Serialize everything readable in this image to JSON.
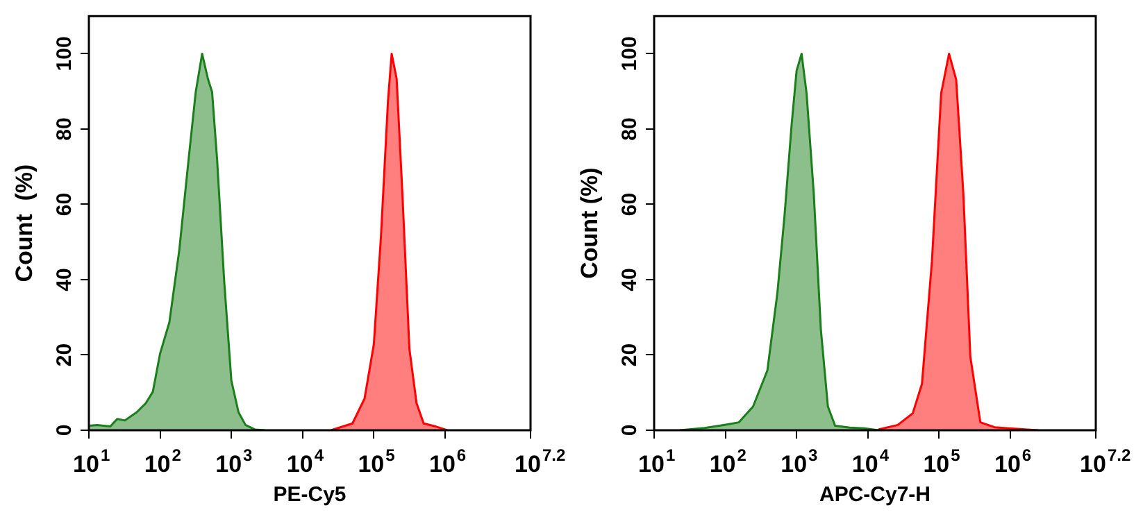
{
  "chart_data": [
    {
      "type": "area",
      "xlabel": "PE-Cy5",
      "ylabel": "Count  (%)",
      "log": "x",
      "xlim": [
        10,
        15848932
      ],
      "ylim": [
        0,
        110
      ],
      "xticks": [
        {
          "value": 10,
          "label": "10$^{1}$"
        },
        {
          "value": 100,
          "label": "10$^{2}$"
        },
        {
          "value": 1000,
          "label": "10$^{3}$"
        },
        {
          "value": 10000,
          "label": "10$^{4}$"
        },
        {
          "value": 100000,
          "label": "10$^{5}$"
        },
        {
          "value": 1000000,
          "label": "10$^{6}$"
        },
        {
          "value": 15848932,
          "label": "10$^{7.2}$"
        }
      ],
      "yticks": [
        0,
        20,
        40,
        60,
        80,
        100
      ],
      "series": [
        {
          "color": "#1a7f1a",
          "x": [
            10,
            13,
            20,
            25,
            32,
            47,
            63,
            79,
            100,
            135,
            186,
            251,
            316,
            389,
            468,
            537,
            631,
            794,
            1000,
            1260,
            1580,
            2140,
            2950
          ],
          "values": [
            1.2,
            1.4,
            1.0,
            3.0,
            2.6,
            4.8,
            7.2,
            10.2,
            20.4,
            28.7,
            47.9,
            71.9,
            89.8,
            100,
            93.4,
            89.8,
            71.9,
            39.5,
            13.2,
            4.8,
            1.4,
            0.2,
            0
          ]
        },
        {
          "color": "#ff0000",
          "x": [
            25100,
            50100,
            74100,
            100000,
            126000,
            158000,
            178000,
            209000,
            251000,
            316000,
            398000,
            501000,
            741000,
            1070000
          ],
          "values": [
            0,
            1.8,
            8.4,
            22.8,
            51.5,
            87.4,
            100,
            93.4,
            63.5,
            21.6,
            7.2,
            1.8,
            1.0,
            0
          ]
        }
      ]
    },
    {
      "type": "area",
      "xlabel": "APC-Cy7-H",
      "ylabel": "Count (%)",
      "log": "x",
      "xlim": [
        10,
        15848932
      ],
      "ylim": [
        0,
        110
      ],
      "xticks": [
        {
          "value": 10,
          "label": "10$^{1}$"
        },
        {
          "value": 100,
          "label": "10$^{2}$"
        },
        {
          "value": 1000,
          "label": "10$^{3}$"
        },
        {
          "value": 10000,
          "label": "10$^{4}$"
        },
        {
          "value": 100000,
          "label": "10$^{5}$"
        },
        {
          "value": 1000000,
          "label": "10$^{6}$"
        },
        {
          "value": 15848932,
          "label": "10$^{7.2}$"
        }
      ],
      "yticks": [
        0,
        20,
        40,
        60,
        80,
        100
      ],
      "series": [
        {
          "color": "#1a7f1a",
          "x": [
            23,
            51,
            95,
            155,
            245,
            389,
            537,
            676,
            851,
            1000,
            1175,
            1380,
            1740,
            2190,
            2750,
            3470,
            5620,
            8910,
            14100
          ],
          "values": [
            0,
            0.6,
            1.4,
            2.1,
            6.3,
            15.9,
            36.4,
            56.9,
            81.1,
            95.5,
            100,
            89.5,
            63,
            26.8,
            6.3,
            1.2,
            0.7,
            0.5,
            0
          ]
        },
        {
          "color": "#ff0000",
          "x": [
            14100,
            26300,
            42700,
            57500,
            79400,
            107000,
            138000,
            174000,
            219000,
            275000,
            380000,
            603000,
            955000,
            2450000
          ],
          "values": [
            0.2,
            1.4,
            4.5,
            12.3,
            44.9,
            89.5,
            100,
            93.1,
            63,
            19.5,
            2.1,
            0.8,
            0.5,
            0
          ]
        }
      ]
    }
  ]
}
